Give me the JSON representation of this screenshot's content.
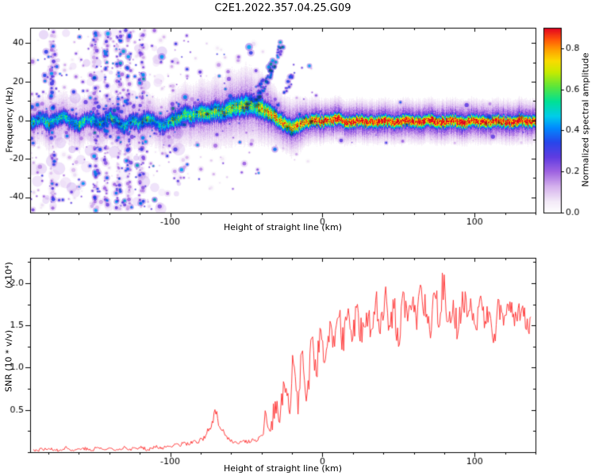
{
  "title": "C2E1.2022.357.04.25.G09",
  "chart_data": [
    {
      "type": "heatmap",
      "title": "C2E1.2022.357.04.25.G09",
      "xlabel": "Height of straight line (km)",
      "ylabel": "Frequency (Hz)",
      "xlim": [
        -192,
        140
      ],
      "ylim": [
        -48,
        48
      ],
      "xticks": [
        -100,
        0,
        100
      ],
      "xtick_minor_step": 20,
      "yticks": [
        -40,
        -20,
        0,
        20,
        40
      ],
      "ytick_minor_step": 10,
      "colorbar": {
        "label": "Normalized spectral amplitude",
        "ticks": [
          0.0,
          0.2,
          0.4,
          0.6,
          0.8
        ],
        "vmax": 0.9
      },
      "colormap_stops": [
        [
          0.0,
          255,
          255,
          255
        ],
        [
          0.06,
          244,
          234,
          248
        ],
        [
          0.14,
          214,
          178,
          238
        ],
        [
          0.22,
          160,
          100,
          225
        ],
        [
          0.3,
          96,
          60,
          225
        ],
        [
          0.38,
          40,
          70,
          235
        ],
        [
          0.46,
          0,
          140,
          255
        ],
        [
          0.52,
          0,
          205,
          235
        ],
        [
          0.6,
          0,
          225,
          150
        ],
        [
          0.68,
          90,
          230,
          60
        ],
        [
          0.76,
          200,
          235,
          0
        ],
        [
          0.82,
          250,
          220,
          0
        ],
        [
          0.88,
          255,
          160,
          0
        ],
        [
          0.94,
          255,
          80,
          10
        ],
        [
          1.0,
          225,
          0,
          35
        ]
      ],
      "ridge": {
        "heights": [
          -190,
          -185,
          -180,
          -175,
          -170,
          -165,
          -160,
          -155,
          -150,
          -145,
          -140,
          -135,
          -130,
          -125,
          -120,
          -115,
          -110,
          -105,
          -100,
          -95,
          -90,
          -85,
          -80,
          -75,
          -70,
          -65,
          -60,
          -55,
          -50,
          -45,
          -40,
          -35,
          -30,
          -25,
          -20,
          -15,
          -10,
          -5,
          0,
          5,
          10,
          15,
          20,
          25,
          30,
          35,
          40,
          45,
          50,
          55,
          60,
          65,
          70,
          75,
          80,
          85,
          90,
          95,
          100,
          105,
          110,
          115,
          120,
          125,
          130,
          135
        ],
        "freq": [
          -1,
          1,
          -2,
          0,
          2,
          -1,
          -3,
          1,
          0,
          -2,
          2,
          -1,
          -3,
          0,
          -2,
          1,
          -1,
          -3,
          -1,
          1,
          3,
          2,
          4,
          3,
          5,
          4,
          6,
          7,
          8,
          7,
          6,
          4,
          1,
          -2,
          -4,
          -2,
          -1,
          0,
          -1,
          0,
          1,
          -1,
          -1,
          0,
          -1,
          -1,
          0,
          -1,
          -1,
          0,
          -1,
          -1,
          0,
          -1,
          -1,
          0,
          -1,
          -1,
          0,
          -1,
          -1,
          0,
          -1,
          -1,
          0,
          -1
        ],
        "amp": [
          0.5,
          0.45,
          0.55,
          0.48,
          0.52,
          0.46,
          0.55,
          0.5,
          0.47,
          0.53,
          0.49,
          0.55,
          0.46,
          0.52,
          0.48,
          0.54,
          0.5,
          0.47,
          0.52,
          0.55,
          0.58,
          0.54,
          0.6,
          0.56,
          0.62,
          0.58,
          0.64,
          0.6,
          0.66,
          0.62,
          0.7,
          0.74,
          0.78,
          0.72,
          0.76,
          0.8,
          0.82,
          0.88,
          0.92,
          0.9,
          0.94,
          0.92,
          0.95,
          0.93,
          0.95,
          0.94,
          0.95,
          0.93,
          0.95,
          0.94,
          0.95,
          0.93,
          0.95,
          0.94,
          0.95,
          0.93,
          0.95,
          0.94,
          0.95,
          0.93,
          0.95,
          0.94,
          0.95,
          0.93,
          0.95,
          0.94
        ],
        "sigma": [
          3.0,
          2.8,
          3.2,
          3.0,
          2.9,
          3.1,
          3.0,
          2.8,
          3.2,
          3.0,
          2.9,
          3.1,
          3.0,
          2.8,
          3.2,
          3.0,
          2.9,
          3.1,
          3.2,
          3.4,
          3.6,
          3.4,
          3.8,
          3.6,
          4.0,
          3.8,
          4.2,
          4.0,
          4.4,
          4.0,
          3.8,
          3.4,
          3.0,
          2.9,
          3.0,
          2.8,
          2.4,
          2.3,
          2.2,
          2.2,
          2.2,
          2.2,
          2.2,
          2.2,
          2.2,
          2.2,
          2.2,
          2.2,
          2.2,
          2.2,
          2.2,
          2.2,
          2.2,
          2.2,
          2.2,
          2.2,
          2.2,
          2.2,
          2.2,
          2.2,
          2.2,
          2.2,
          2.2,
          2.2,
          2.2,
          2.2
        ]
      },
      "noise": {
        "seed": 1337,
        "regions": [
          {
            "h0": -192,
            "h1": -150,
            "density": 7,
            "f0": -47,
            "f1": 47,
            "amp": 0.22
          },
          {
            "h0": -150,
            "h1": -88,
            "density": 8,
            "f0": -47,
            "f1": 47,
            "amp": 0.24
          },
          {
            "h0": -88,
            "h1": -58,
            "density": 4,
            "f0": -36,
            "f1": 40,
            "amp": 0.22
          },
          {
            "h0": -58,
            "h1": -34,
            "density": 2.2,
            "f0": -28,
            "f1": 40,
            "amp": 0.22
          },
          {
            "h0": -34,
            "h1": -4,
            "density": 1.6,
            "f0": -22,
            "f1": 30,
            "amp": 0.26
          },
          {
            "h0": -4,
            "h1": 140,
            "density": 0.8,
            "f0": -12,
            "f1": 10,
            "amp": 0.18
          }
        ],
        "streaks": [
          {
            "h": -177,
            "hw": 1.5,
            "n": 110
          },
          {
            "h": -149,
            "hw": 1.5,
            "n": 120
          },
          {
            "h": -142,
            "hw": 1.2,
            "n": 90
          },
          {
            "h": -134,
            "hw": 1.5,
            "n": 130
          },
          {
            "h": -127,
            "hw": 1.2,
            "n": 90
          },
          {
            "h": -119,
            "hw": 1.5,
            "n": 110
          }
        ],
        "diagonals": [
          {
            "h0": -44,
            "f0": 8,
            "h1": -26,
            "f1": 40,
            "n": 60,
            "amp": 0.45
          },
          {
            "h0": -52,
            "f0": 4,
            "h1": -40,
            "f1": 20,
            "n": 30,
            "amp": 0.3
          },
          {
            "h0": -30,
            "f0": 5,
            "h1": -18,
            "f1": 26,
            "n": 25,
            "amp": 0.28
          }
        ],
        "clouds": {
          "h0": -192,
          "h1": -92,
          "count": 110,
          "rmin": 2.5,
          "rmax": 8,
          "amp": 0.15
        }
      }
    },
    {
      "type": "line",
      "xlabel": "Height of straight line (km)",
      "ylabel": "SNR (10 * v/v)",
      "scale_note": "(x10⁴)",
      "line_color": "#ff2a2a",
      "xlim": [
        -192,
        140
      ],
      "ylim": [
        0,
        2.3
      ],
      "xticks": [
        -100,
        0,
        100
      ],
      "xtick_minor_step": 20,
      "yticks": [
        0.5,
        1.0,
        1.5,
        2.0
      ],
      "ytick_minor_step": 0.25,
      "x": [
        -190,
        -187,
        -184,
        -181,
        -178,
        -175,
        -172,
        -169,
        -166,
        -163,
        -160,
        -157,
        -154,
        -151,
        -148,
        -145,
        -142,
        -139,
        -136,
        -133,
        -130,
        -127,
        -124,
        -121,
        -118,
        -115,
        -112,
        -109,
        -106,
        -103,
        -100,
        -97,
        -94,
        -91,
        -88,
        -85,
        -82,
        -79,
        -76,
        -73,
        -70,
        -67,
        -64,
        -61,
        -58,
        -55,
        -52,
        -49,
        -46,
        -43,
        -40,
        -37,
        -34,
        -31,
        -28,
        -25,
        -22,
        -19,
        -16,
        -13,
        -10,
        -7,
        -4,
        -1,
        2,
        5,
        8,
        11,
        14,
        17,
        20,
        23,
        26,
        29,
        32,
        35,
        38,
        41,
        44,
        47,
        50,
        53,
        56,
        59,
        62,
        65,
        68,
        71,
        74,
        77,
        80,
        83,
        86,
        89,
        92,
        95,
        98,
        101,
        104,
        107,
        110,
        113,
        116,
        119,
        122,
        125,
        128,
        131,
        134,
        137
      ],
      "y": [
        0.03,
        0.02,
        0.04,
        0.03,
        0.05,
        0.02,
        0.03,
        0.06,
        0.03,
        0.02,
        0.04,
        0.05,
        0.03,
        0.02,
        0.06,
        0.04,
        0.03,
        0.05,
        0.02,
        0.04,
        0.07,
        0.03,
        0.05,
        0.04,
        0.06,
        0.03,
        0.05,
        0.08,
        0.04,
        0.06,
        0.07,
        0.1,
        0.08,
        0.12,
        0.09,
        0.13,
        0.11,
        0.16,
        0.22,
        0.3,
        0.45,
        0.28,
        0.2,
        0.15,
        0.12,
        0.1,
        0.14,
        0.11,
        0.16,
        0.13,
        0.2,
        0.45,
        0.25,
        0.6,
        0.35,
        0.8,
        0.5,
        1.05,
        0.45,
        1.2,
        0.7,
        1.35,
        0.9,
        1.45,
        1.1,
        1.55,
        1.25,
        1.6,
        1.2,
        1.7,
        1.35,
        1.75,
        1.3,
        1.65,
        1.45,
        1.8,
        1.4,
        1.85,
        1.5,
        1.7,
        1.25,
        1.9,
        1.55,
        1.75,
        1.45,
        1.95,
        1.6,
        1.35,
        1.85,
        1.5,
        2.1,
        1.55,
        1.8,
        1.4,
        1.9,
        1.6,
        1.7,
        1.45,
        1.85,
        1.55,
        1.65,
        1.4,
        1.8,
        1.5,
        1.75,
        1.6,
        1.55,
        1.7,
        1.45,
        1.6
      ]
    }
  ]
}
